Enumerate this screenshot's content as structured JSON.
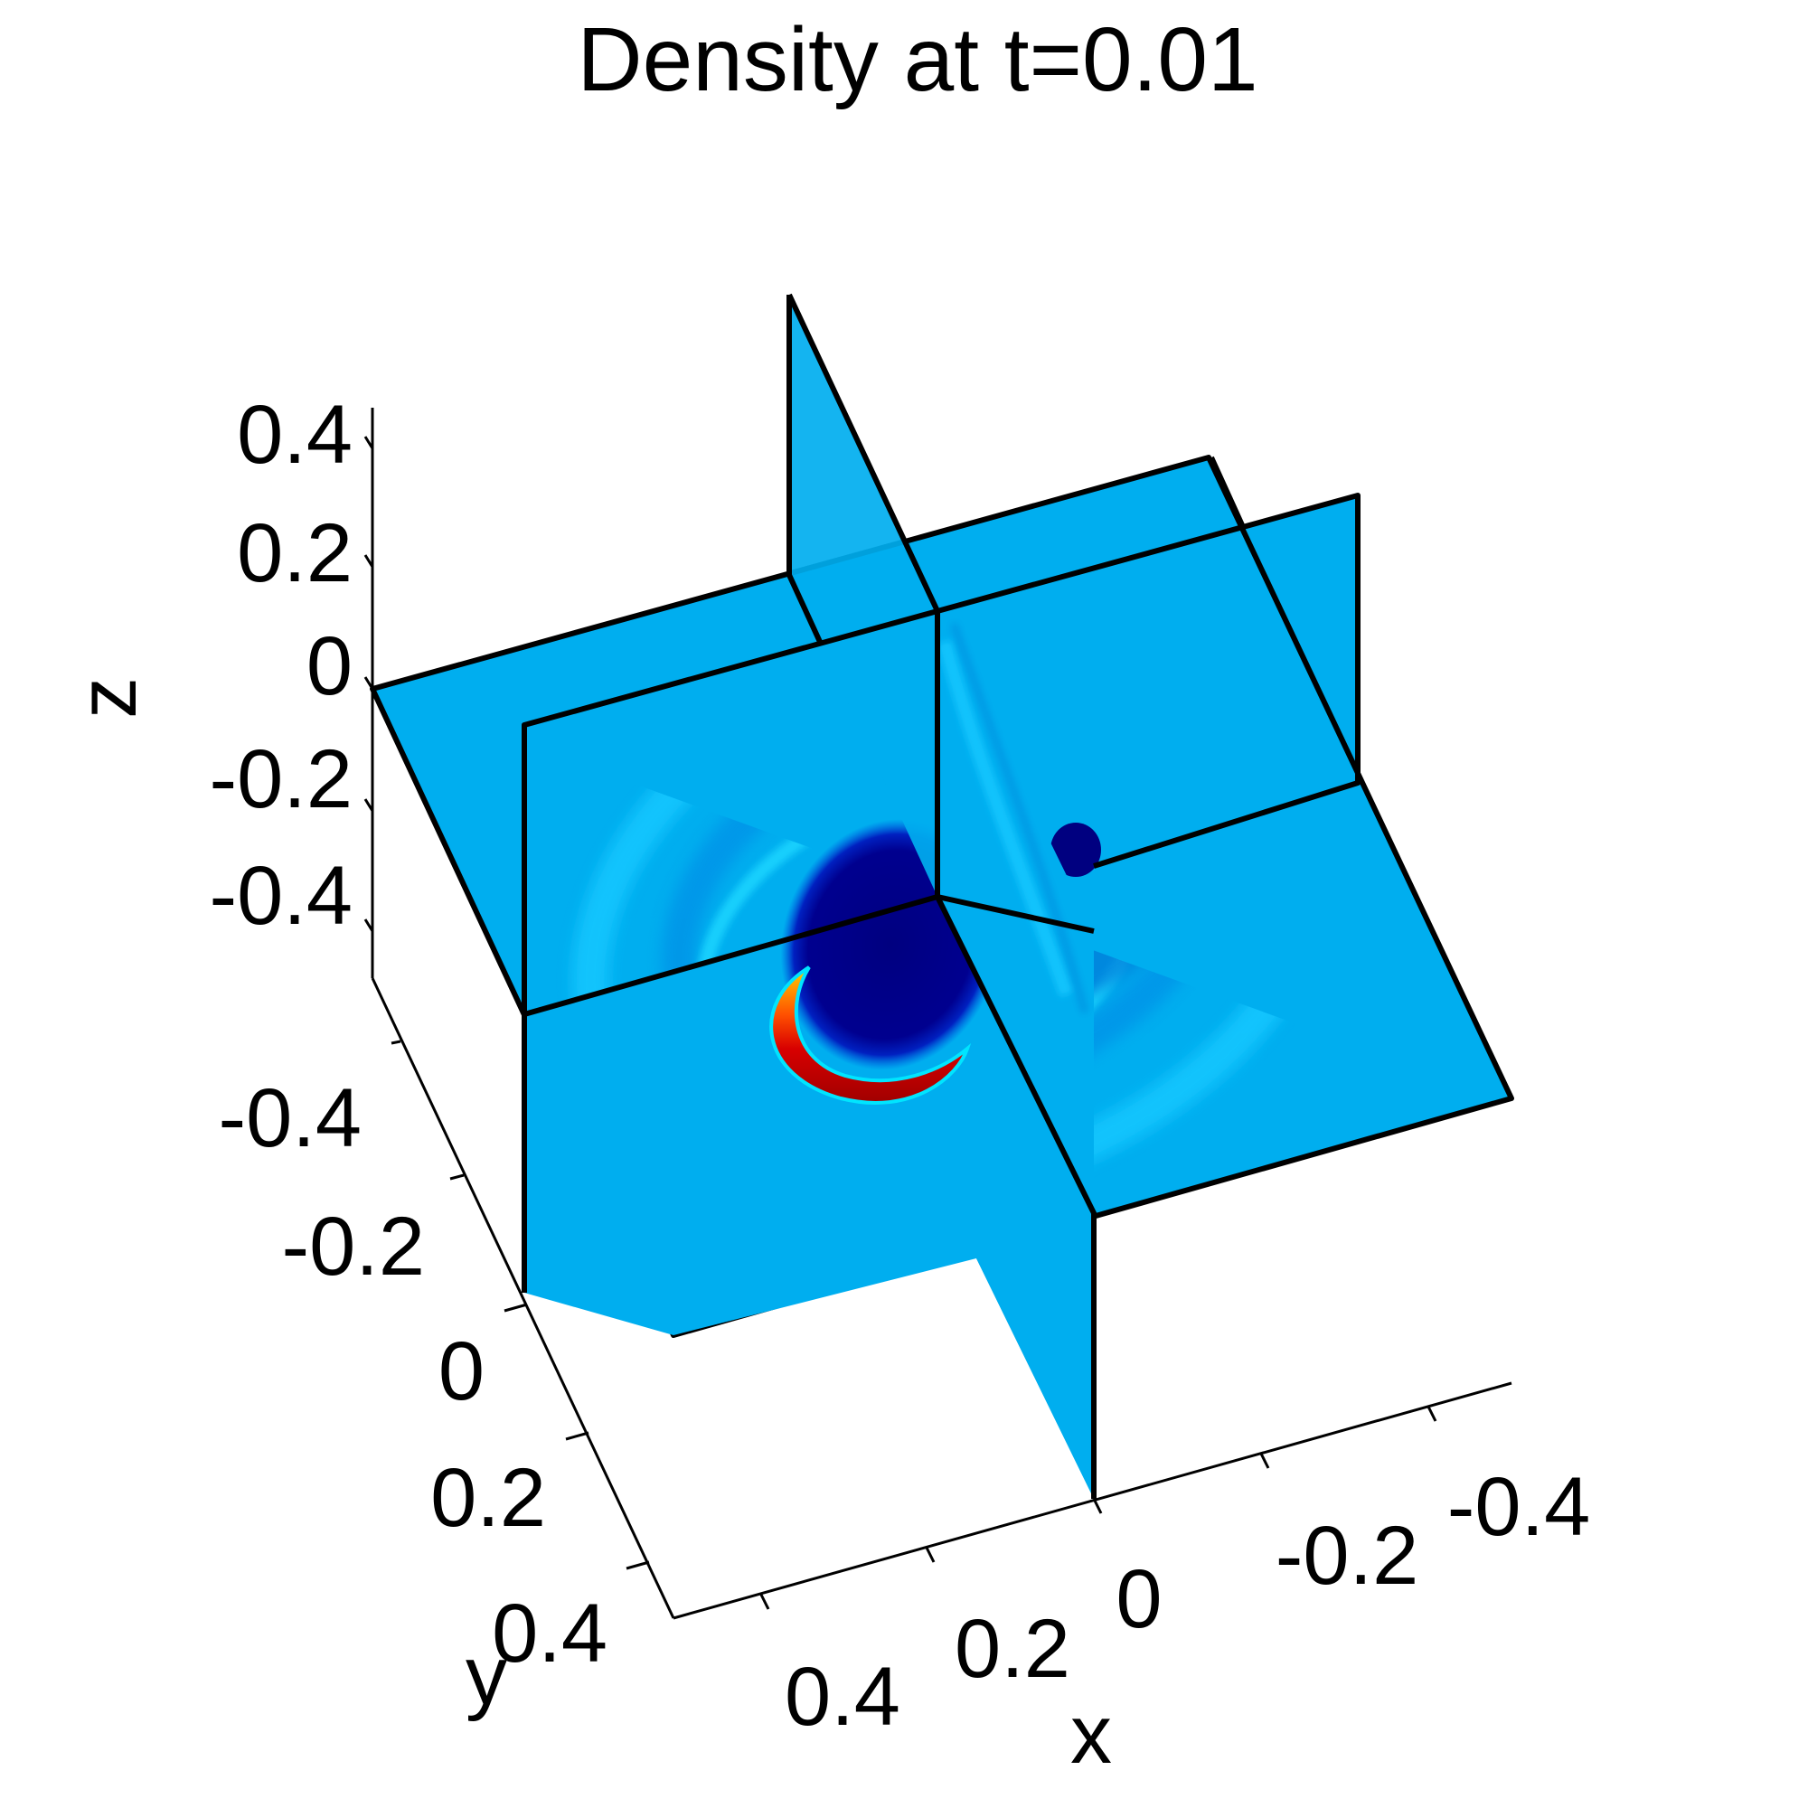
{
  "chart_data": {
    "type": "3d-slice-contour",
    "title": "Density at t=0.01",
    "colormap": "jet",
    "background_color": "#00AEEF",
    "axes": {
      "x": {
        "label": "x",
        "ticks": [
          "0.4",
          "0.2",
          "0",
          "-0.2",
          "-0.4"
        ],
        "range": [
          -0.5,
          0.5
        ]
      },
      "y": {
        "label": "y",
        "ticks": [
          "-0.4",
          "-0.2",
          "0",
          "0.2",
          "0.4"
        ],
        "range": [
          -0.5,
          0.5
        ]
      },
      "z": {
        "label": "z",
        "ticks": [
          "0.4",
          "0.2",
          "0",
          "-0.2",
          "-0.4"
        ],
        "range": [
          -0.5,
          0.5
        ]
      }
    },
    "slices": [
      {
        "plane": "z",
        "position": 0
      },
      {
        "plane": "y",
        "position": 0
      },
      {
        "plane": "x",
        "position": 0
      }
    ],
    "features": [
      {
        "name": "low-density core",
        "color": "#00008B"
      },
      {
        "name": "high-density crescent",
        "color": "#E80000"
      },
      {
        "name": "outer ring",
        "color": "#19C8FF"
      }
    ]
  }
}
